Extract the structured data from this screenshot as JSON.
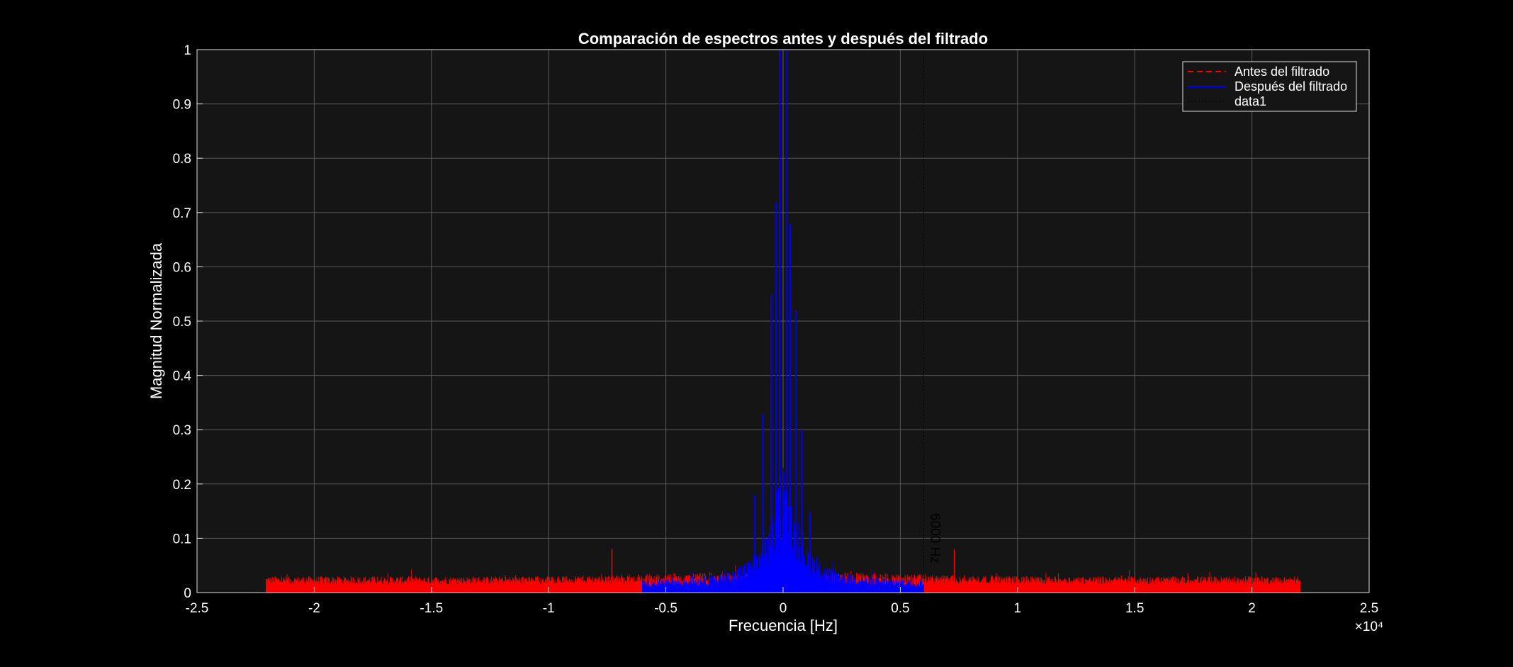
{
  "chart_data": {
    "type": "line",
    "title": "Comparación de espectros antes y después del filtrado",
    "xlabel": "Frecuencia [Hz]",
    "ylabel": "Magnitud Normalizada",
    "x_exponent_label": "×10⁴",
    "xlim": [
      -25000,
      25000
    ],
    "ylim": [
      0,
      1
    ],
    "x_ticks": [
      -25000,
      -20000,
      -15000,
      -10000,
      -5000,
      0,
      5000,
      10000,
      15000,
      20000,
      25000
    ],
    "x_tick_labels": [
      "-2.5",
      "-2",
      "-1.5",
      "-1",
      "-0.5",
      "0",
      "0.5",
      "1",
      "1.5",
      "2",
      "2.5"
    ],
    "y_ticks": [
      0,
      0.1,
      0.2,
      0.3,
      0.4,
      0.5,
      0.6,
      0.7,
      0.8,
      0.9,
      1
    ],
    "y_tick_labels": [
      "0",
      "0.1",
      "0.2",
      "0.3",
      "0.4",
      "0.5",
      "0.6",
      "0.7",
      "0.8",
      "0.9",
      "1"
    ],
    "grid": true,
    "legend_position": "top-right",
    "series": [
      {
        "name": "Antes del filtrado",
        "color": "#ff0000",
        "style": "dashed",
        "x_range": [
          -22050,
          22050
        ],
        "noise_floor": [
          0.015,
          0.03
        ],
        "peaks": [
          {
            "x": -7300,
            "y": 0.08
          },
          {
            "x": 7300,
            "y": 0.08
          }
        ]
      },
      {
        "name": "Después del filtrado",
        "color": "#0000ff",
        "style": "solid",
        "x_range": [
          -6000,
          6000
        ],
        "peaks": [
          {
            "x": -150,
            "y": 1.0
          },
          {
            "x": 150,
            "y": 1.0
          },
          {
            "x": -300,
            "y": 0.72
          },
          {
            "x": 300,
            "y": 0.68
          },
          {
            "x": -500,
            "y": 0.55
          },
          {
            "x": 550,
            "y": 0.52
          },
          {
            "x": -850,
            "y": 0.33
          },
          {
            "x": 800,
            "y": 0.3
          },
          {
            "x": -1200,
            "y": 0.18
          },
          {
            "x": 1150,
            "y": 0.15
          }
        ]
      },
      {
        "name": "data1",
        "color": "#000000",
        "style": "dotted",
        "x": [
          6000,
          6000
        ],
        "y": [
          0,
          1
        ]
      }
    ],
    "annotations": [
      {
        "text": "6000 Hz",
        "x": 6000,
        "y": 0.1,
        "rotation": 90
      }
    ]
  },
  "colors": {
    "figure_background": "#000000",
    "axes_background": "#151515",
    "grid": "#5a5a5a",
    "text": "#ffffff"
  }
}
